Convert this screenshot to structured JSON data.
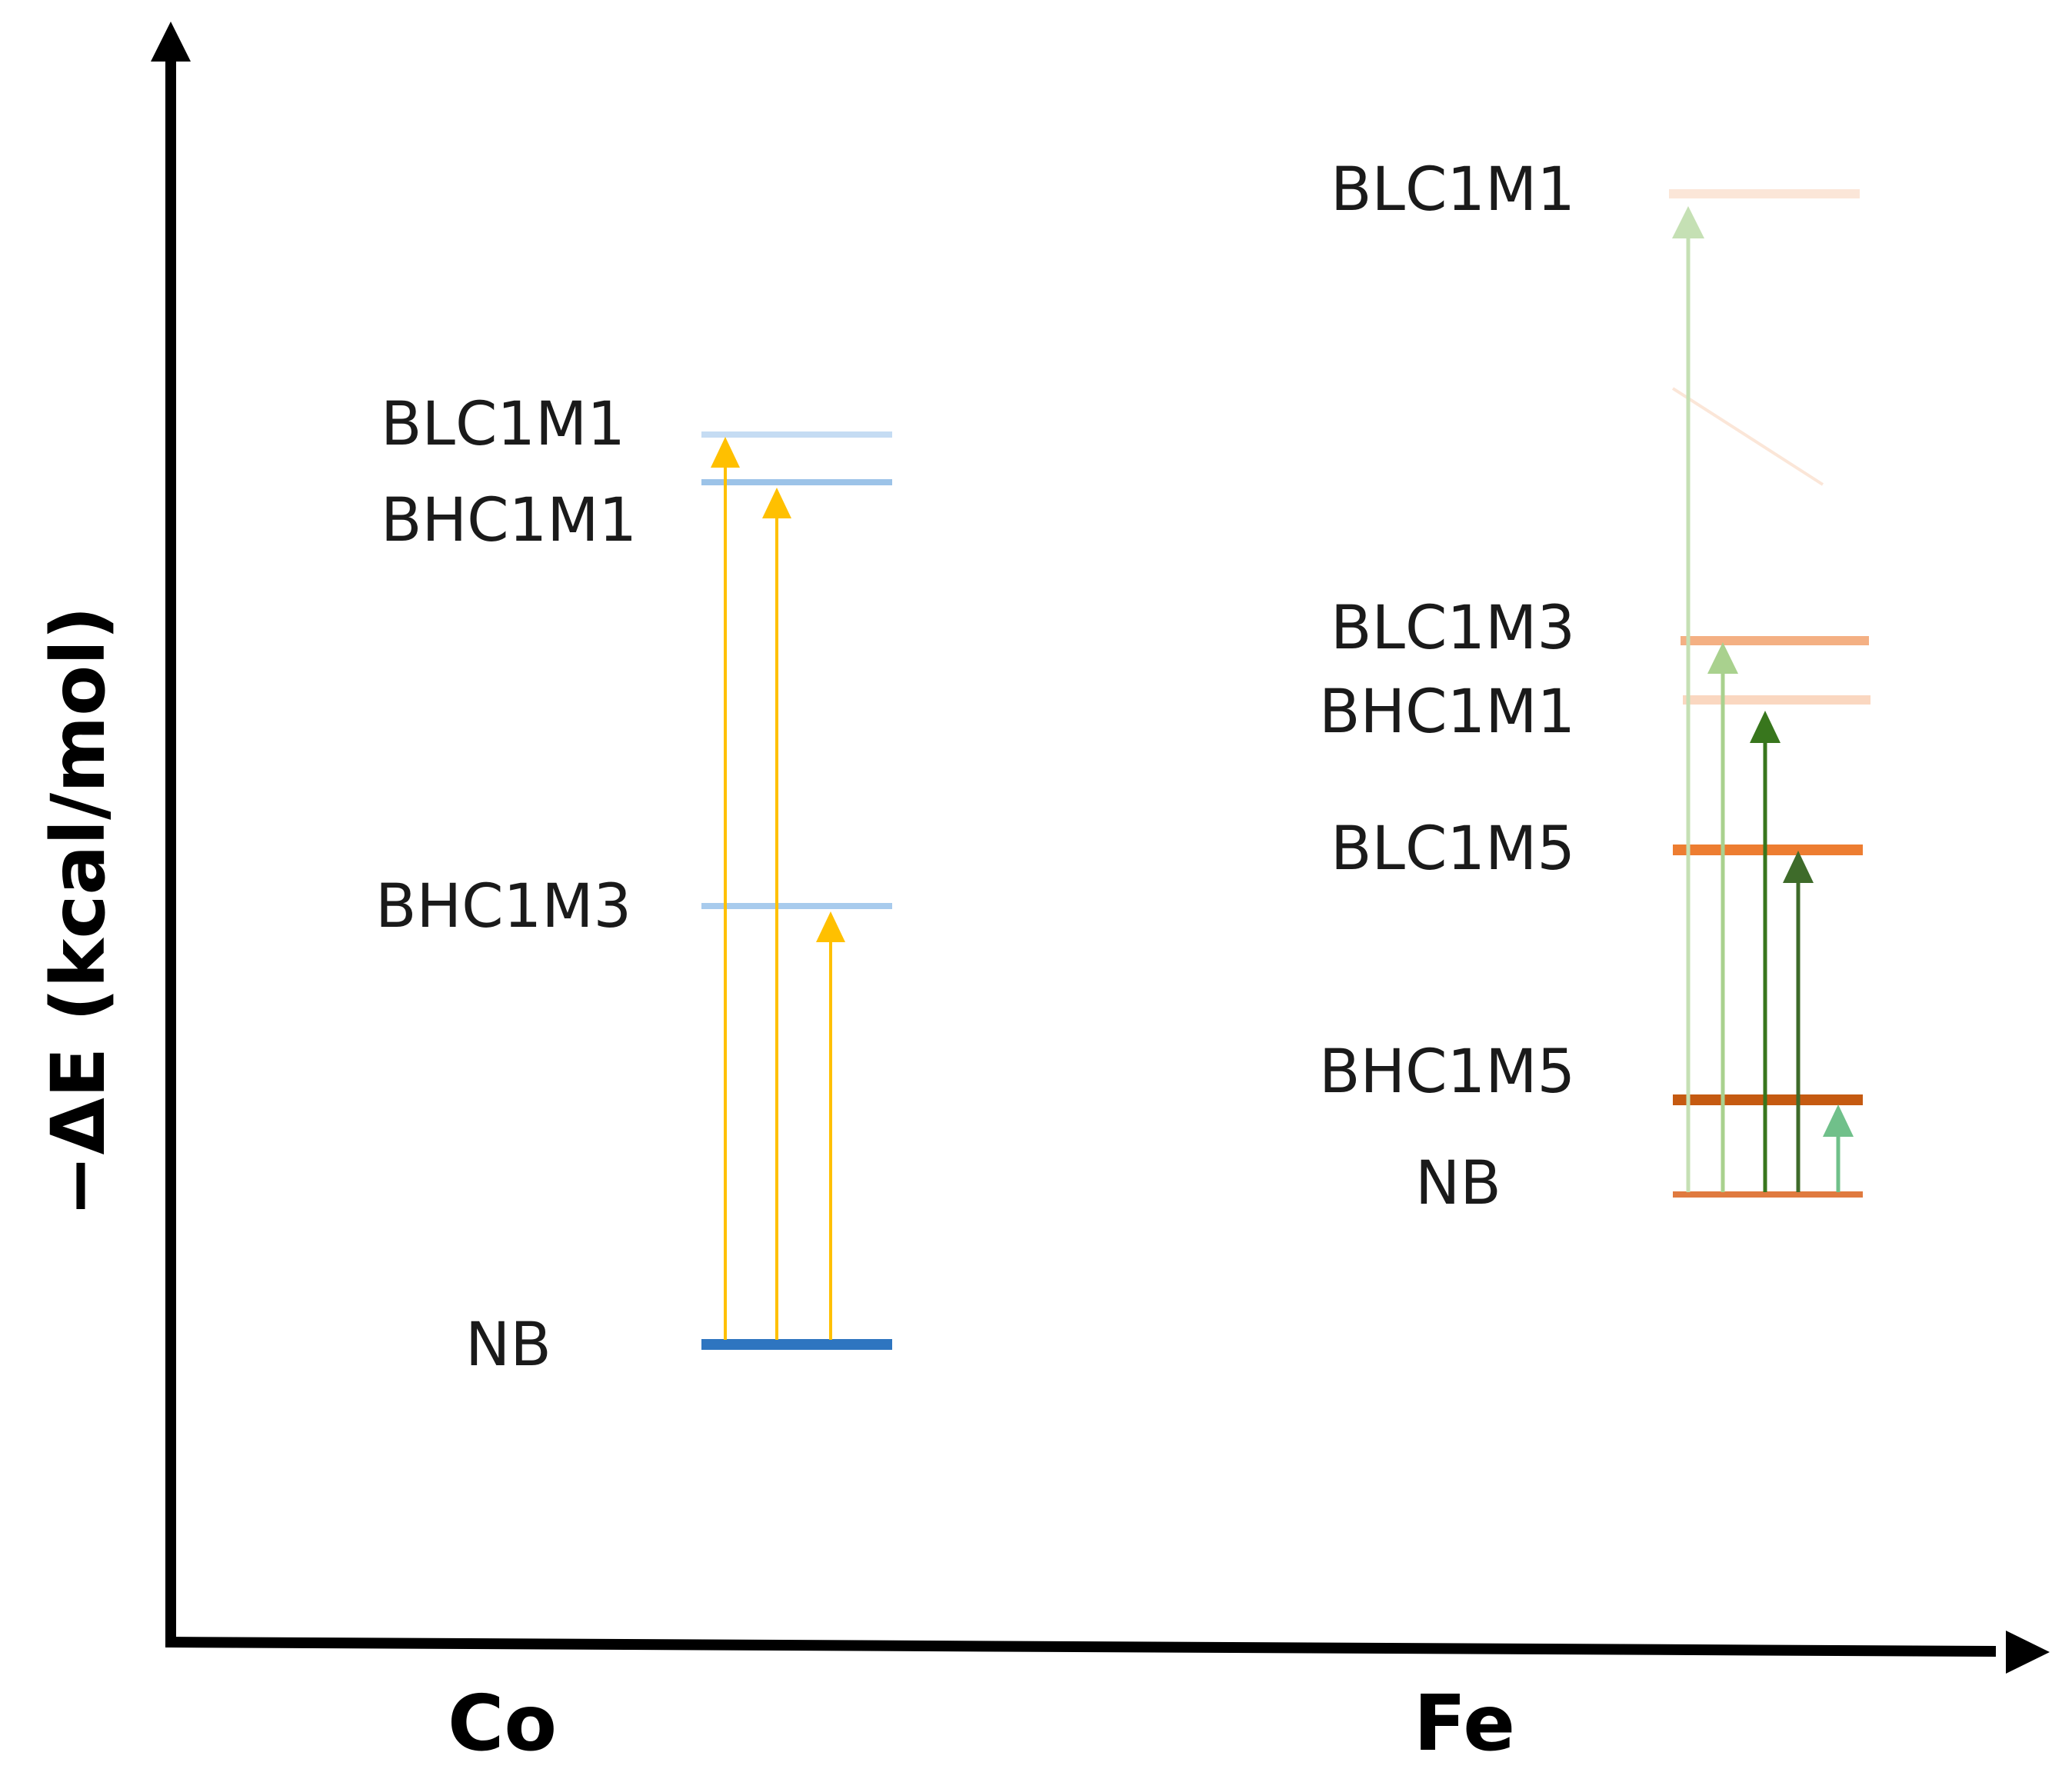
{
  "axis": {
    "y_title": "−ΔE (kcal/mol)",
    "axis_color": "#000000"
  },
  "columns": {
    "co": {
      "label": "Co",
      "levels": {
        "blc1m1": {
          "label": "BLC1M1",
          "color": "#c5dcf3"
        },
        "bhc1m1": {
          "label": "BHC1M1",
          "color": "#9cc3e8"
        },
        "bhc1m3": {
          "label": "BHC1M3",
          "color": "#a8cbed"
        },
        "nb": {
          "label": "NB",
          "color": "#2e75c0"
        }
      },
      "arrow_color": "#ffc000"
    },
    "fe": {
      "label": "Fe",
      "levels": {
        "blc1m1": {
          "label": "BLC1M1",
          "color": "#fbe6d8"
        },
        "blc1m3": {
          "label": "BLC1M3",
          "color": "#f4b083"
        },
        "bhc1m1": {
          "label": "BHC1M1",
          "color": "#fad7c0"
        },
        "blc1m5": {
          "label": "BLC1M5",
          "color": "#ed7d31"
        },
        "bhc1m5": {
          "label": "BHC1M5",
          "color": "#c55a11"
        },
        "nb": {
          "label": "NB",
          "color": "#e07a3f"
        }
      },
      "arrow_colors": {
        "pale": "#c5e0b4",
        "light": "#a9d18e",
        "dark": "#38761d",
        "darker": "#3e6b2a",
        "teal": "#70c08a"
      }
    }
  }
}
